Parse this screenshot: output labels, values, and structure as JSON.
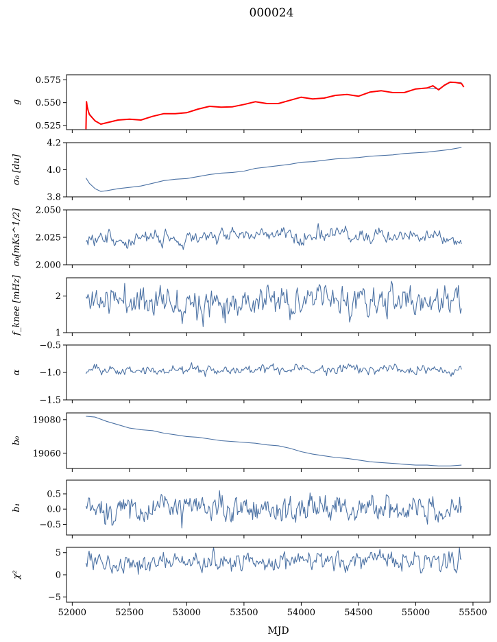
{
  "figure": {
    "title": "000024",
    "xlabel": "MJD"
  },
  "chart_data": [
    {
      "type": "line",
      "ylabel": "g",
      "xlim": [
        51950,
        55650
      ],
      "ylim": [
        0.5205,
        0.5805
      ],
      "yticks": [
        "0.575",
        "0.550",
        "0.525"
      ],
      "ytick_values": [
        0.575,
        0.55,
        0.525
      ],
      "series": [
        {
          "color": "#4c72a4",
          "x": [
            52120,
            52150,
            52200,
            52250,
            52300,
            52400,
            52500,
            52600,
            52700,
            52800,
            52900,
            53000,
            53100,
            53200,
            53300,
            53400,
            53500,
            53600,
            53700,
            53800,
            53900,
            54000,
            54100,
            54200,
            54300,
            54400,
            54500,
            54600,
            54700,
            54800,
            54900,
            55000,
            55100,
            55200,
            55300,
            55400
          ],
          "values": [
            0.548,
            0.538,
            0.53,
            0.5265,
            0.528,
            0.531,
            0.532,
            0.531,
            0.535,
            0.538,
            0.538,
            0.539,
            0.543,
            0.546,
            0.545,
            0.5455,
            0.548,
            0.551,
            0.549,
            0.549,
            0.5525,
            0.556,
            0.554,
            0.555,
            0.558,
            0.559,
            0.557,
            0.5615,
            0.563,
            0.561,
            0.561,
            0.565,
            0.566,
            0.565,
            0.572,
            0.572
          ]
        },
        {
          "color": "#ff0000",
          "x": [
            52120,
            52125,
            52130,
            52140,
            52150,
            52200,
            52250,
            52300,
            52400,
            52500,
            52600,
            52700,
            52800,
            52900,
            53000,
            53100,
            53200,
            53300,
            53400,
            53500,
            53600,
            53700,
            53800,
            53900,
            54000,
            54100,
            54200,
            54300,
            54400,
            54500,
            54600,
            54700,
            54800,
            54900,
            55000,
            55100,
            55150,
            55200,
            55250,
            55300,
            55350,
            55400,
            55420
          ],
          "values": [
            0.521,
            0.551,
            0.546,
            0.541,
            0.537,
            0.53,
            0.5265,
            0.528,
            0.531,
            0.532,
            0.531,
            0.535,
            0.538,
            0.538,
            0.539,
            0.543,
            0.546,
            0.545,
            0.5455,
            0.548,
            0.551,
            0.549,
            0.549,
            0.5525,
            0.556,
            0.554,
            0.555,
            0.558,
            0.559,
            0.557,
            0.5615,
            0.563,
            0.561,
            0.561,
            0.565,
            0.566,
            0.5685,
            0.564,
            0.569,
            0.5725,
            0.572,
            0.571,
            0.567
          ]
        }
      ]
    },
    {
      "type": "line",
      "ylabel": "σ₀ [du]",
      "xlim": [
        51950,
        55650
      ],
      "ylim": [
        3.8,
        4.2
      ],
      "yticks": [
        "4.2",
        "4.0",
        "3.8"
      ],
      "ytick_values": [
        4.2,
        4.0,
        3.8
      ],
      "series": [
        {
          "color": "#4c72a4",
          "x": [
            52120,
            52150,
            52200,
            52250,
            52300,
            52400,
            52500,
            52600,
            52700,
            52800,
            52900,
            53000,
            53100,
            53200,
            53300,
            53400,
            53500,
            53600,
            53700,
            53800,
            53900,
            54000,
            54100,
            54200,
            54300,
            54400,
            54500,
            54600,
            54700,
            54800,
            54900,
            55000,
            55100,
            55200,
            55300,
            55400
          ],
          "values": [
            3.94,
            3.9,
            3.86,
            3.84,
            3.845,
            3.86,
            3.87,
            3.88,
            3.9,
            3.92,
            3.93,
            3.935,
            3.95,
            3.965,
            3.975,
            3.98,
            3.99,
            4.01,
            4.02,
            4.03,
            4.04,
            4.055,
            4.06,
            4.07,
            4.08,
            4.085,
            4.09,
            4.1,
            4.105,
            4.11,
            4.12,
            4.125,
            4.13,
            4.14,
            4.15,
            4.165
          ]
        }
      ]
    },
    {
      "type": "line",
      "ylabel": "σ₀[mKs^1/2]",
      "xlim": [
        51950,
        55650
      ],
      "ylim": [
        2.0,
        2.05
      ],
      "yticks": [
        "2.050",
        "2.025",
        "2.000"
      ],
      "ytick_values": [
        2.05,
        2.025,
        2.0
      ],
      "noise": {
        "x_start": 52120,
        "x_end": 55400,
        "n": 360,
        "sd": 0.0035,
        "seed": 3
      },
      "trend": {
        "x": [
          52120,
          52200,
          52400,
          52800,
          53200,
          53600,
          54000,
          54400,
          54800,
          55200,
          55400
        ],
        "values": [
          2.025,
          2.021,
          2.022,
          2.024,
          2.026,
          2.028,
          2.027,
          2.027,
          2.026,
          2.025,
          2.021
        ]
      }
    },
    {
      "type": "line",
      "ylabel": "f_knee [mHz]",
      "xlim": [
        51950,
        55650
      ],
      "ylim": [
        1.0,
        2.5
      ],
      "yticks": [
        "2",
        "1"
      ],
      "ytick_values": [
        2,
        1
      ],
      "noise": {
        "x_start": 52120,
        "x_end": 55400,
        "n": 360,
        "sd": 0.22,
        "seed": 11
      },
      "trend": {
        "x": [
          52120,
          55400
        ],
        "values": [
          1.9,
          1.85
        ]
      }
    },
    {
      "type": "line",
      "ylabel": "α",
      "xlim": [
        51950,
        55650
      ],
      "ylim": [
        -1.5,
        -0.5
      ],
      "yticks": [
        "−0.5",
        "−1.0",
        "−1.5"
      ],
      "ytick_values": [
        -0.5,
        -1.0,
        -1.5
      ],
      "noise": {
        "x_start": 52120,
        "x_end": 55400,
        "n": 360,
        "sd": 0.045,
        "seed": 23
      },
      "trend": {
        "x": [
          52120,
          55400
        ],
        "values": [
          -0.96,
          -0.94
        ]
      }
    },
    {
      "type": "line",
      "ylabel": "b₀",
      "xlim": [
        51950,
        55650
      ],
      "ylim": [
        19051,
        19084
      ],
      "yticks": [
        "19080",
        "19060"
      ],
      "ytick_values": [
        19080,
        19060
      ],
      "series": [
        {
          "color": "#4c72a4",
          "x": [
            52120,
            52200,
            52300,
            52400,
            52500,
            52600,
            52700,
            52800,
            52900,
            53000,
            53100,
            53200,
            53300,
            53400,
            53500,
            53600,
            53700,
            53800,
            53900,
            54000,
            54100,
            54200,
            54300,
            54400,
            54500,
            54600,
            54700,
            54800,
            54900,
            55000,
            55100,
            55200,
            55300,
            55400
          ],
          "values": [
            19082,
            19081.5,
            19079,
            19077,
            19075,
            19074,
            19073.5,
            19072,
            19071,
            19070,
            19069.5,
            19068.5,
            19067.5,
            19067,
            19066.5,
            19066,
            19065,
            19064.5,
            19063,
            19061,
            19059.5,
            19058.5,
            19057.5,
            19057,
            19056,
            19055,
            19054.5,
            19054,
            19053.5,
            19053,
            19053,
            19052.5,
            19052.5,
            19053
          ]
        }
      ]
    },
    {
      "type": "line",
      "ylabel": "b₁",
      "xlim": [
        51950,
        55650
      ],
      "ylim": [
        -0.85,
        0.95
      ],
      "yticks": [
        "0.5",
        "0.0",
        "−0.5"
      ],
      "ytick_values": [
        0.5,
        0.0,
        -0.5
      ],
      "noise": {
        "x_start": 52120,
        "x_end": 55400,
        "n": 420,
        "sd": 0.23,
        "seed": 37
      },
      "trend": {
        "x": [
          52120,
          55400
        ],
        "values": [
          0.0,
          0.0
        ]
      }
    },
    {
      "type": "line",
      "ylabel": "χ²",
      "xlim": [
        51950,
        55650
      ],
      "ylim": [
        -6.2,
        6.2
      ],
      "yticks": [
        "5",
        "0",
        "−5"
      ],
      "ytick_values": [
        5,
        0,
        -5
      ],
      "noise": {
        "x_start": 52120,
        "x_end": 55400,
        "n": 360,
        "sd": 1.1,
        "seed": 53
      },
      "trend": {
        "x": [
          52120,
          55400
        ],
        "values": [
          2.8,
          3.2
        ]
      }
    }
  ],
  "xaxis": {
    "ticks": [
      "52000",
      "52500",
      "53000",
      "53500",
      "54000",
      "54500",
      "55000",
      "55500"
    ],
    "tick_values": [
      52000,
      52500,
      53000,
      53500,
      54000,
      54500,
      55000,
      55500
    ]
  }
}
